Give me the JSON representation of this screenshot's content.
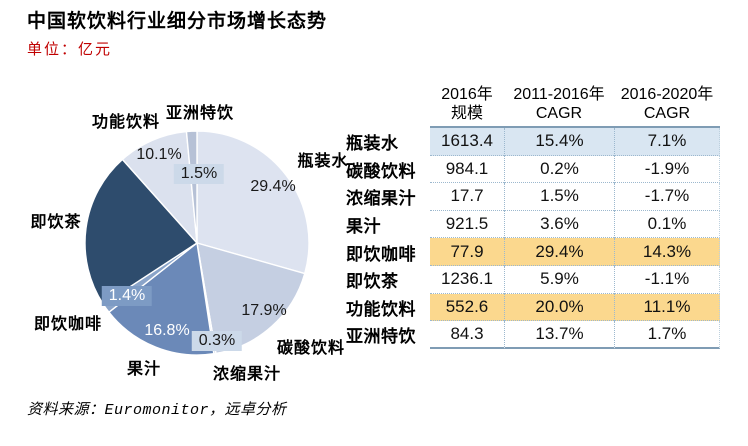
{
  "header": {
    "title": "中国软饮料行业细分市场增长态势",
    "unit": "单位：亿元"
  },
  "chart_data": {
    "type": "pie",
    "title": "中国软饮料行业细分市场增长态势",
    "unit_label": "单位：亿元",
    "start_angle": "12-o-clock, clockwise",
    "slices": [
      {
        "name": "瓶装水",
        "value": 29.4,
        "label": "29.4%",
        "color": "#dde3f0"
      },
      {
        "name": "碳酸饮料",
        "value": 17.9,
        "label": "17.9%",
        "color": "#c5cfe2"
      },
      {
        "name": "浓缩果汁",
        "value": 0.3,
        "label": "0.3%",
        "color": "#cdd7e7"
      },
      {
        "name": "果汁",
        "value": 16.8,
        "label": "16.8%",
        "color": "#6b89b8"
      },
      {
        "name": "即饮咖啡",
        "value": 1.4,
        "label": "1.4%",
        "color": "#8aa4c9"
      },
      {
        "name": "即饮茶",
        "value": 22.6,
        "label": "",
        "color": "#2e4c6d"
      },
      {
        "name": "功能饮料",
        "value": 10.1,
        "label": "10.1%",
        "color": "#dbe1ee"
      },
      {
        "name": "亚洲特饮",
        "value": 1.5,
        "label": "1.5%",
        "color": "#b6c1d6"
      }
    ],
    "colors": {
      "label_box_light": "#ccd9e9",
      "label_box_blue": "#7d9bc4",
      "slice_border": "#ffffff"
    }
  },
  "table": {
    "headers": [
      {
        "line1": "2016年",
        "line2": "规模"
      },
      {
        "line1": "2011-2016年",
        "line2": "CAGR"
      },
      {
        "line1": "2016-2020年",
        "line2": "CAGR"
      }
    ],
    "rows": [
      {
        "label": "瓶装水",
        "scale": "1613.4",
        "cagr1": "15.4%",
        "cagr2": "7.1%",
        "highlight": "blue"
      },
      {
        "label": "碳酸饮料",
        "scale": "984.1",
        "cagr1": "0.2%",
        "cagr2": "-1.9%",
        "highlight": ""
      },
      {
        "label": "浓缩果汁",
        "scale": "17.7",
        "cagr1": "1.5%",
        "cagr2": "-1.7%",
        "highlight": ""
      },
      {
        "label": "果汁",
        "scale": "921.5",
        "cagr1": "3.6%",
        "cagr2": "0.1%",
        "highlight": ""
      },
      {
        "label": "即饮咖啡",
        "scale": "77.9",
        "cagr1": "29.4%",
        "cagr2": "14.3%",
        "highlight": "orange"
      },
      {
        "label": "即饮茶",
        "scale": "1236.1",
        "cagr1": "5.9%",
        "cagr2": "-1.1%",
        "highlight": ""
      },
      {
        "label": "功能饮料",
        "scale": "552.6",
        "cagr1": "20.0%",
        "cagr2": "11.1%",
        "highlight": "orange"
      },
      {
        "label": "亚洲特饮",
        "scale": "84.3",
        "cagr1": "13.7%",
        "cagr2": "1.7%",
        "highlight": ""
      }
    ],
    "highlight_colors": {
      "blue": "#d9e6f2",
      "orange": "#fbd88e"
    }
  },
  "footer": {
    "source": "资料来源：Euromonitor，远卓分析"
  }
}
